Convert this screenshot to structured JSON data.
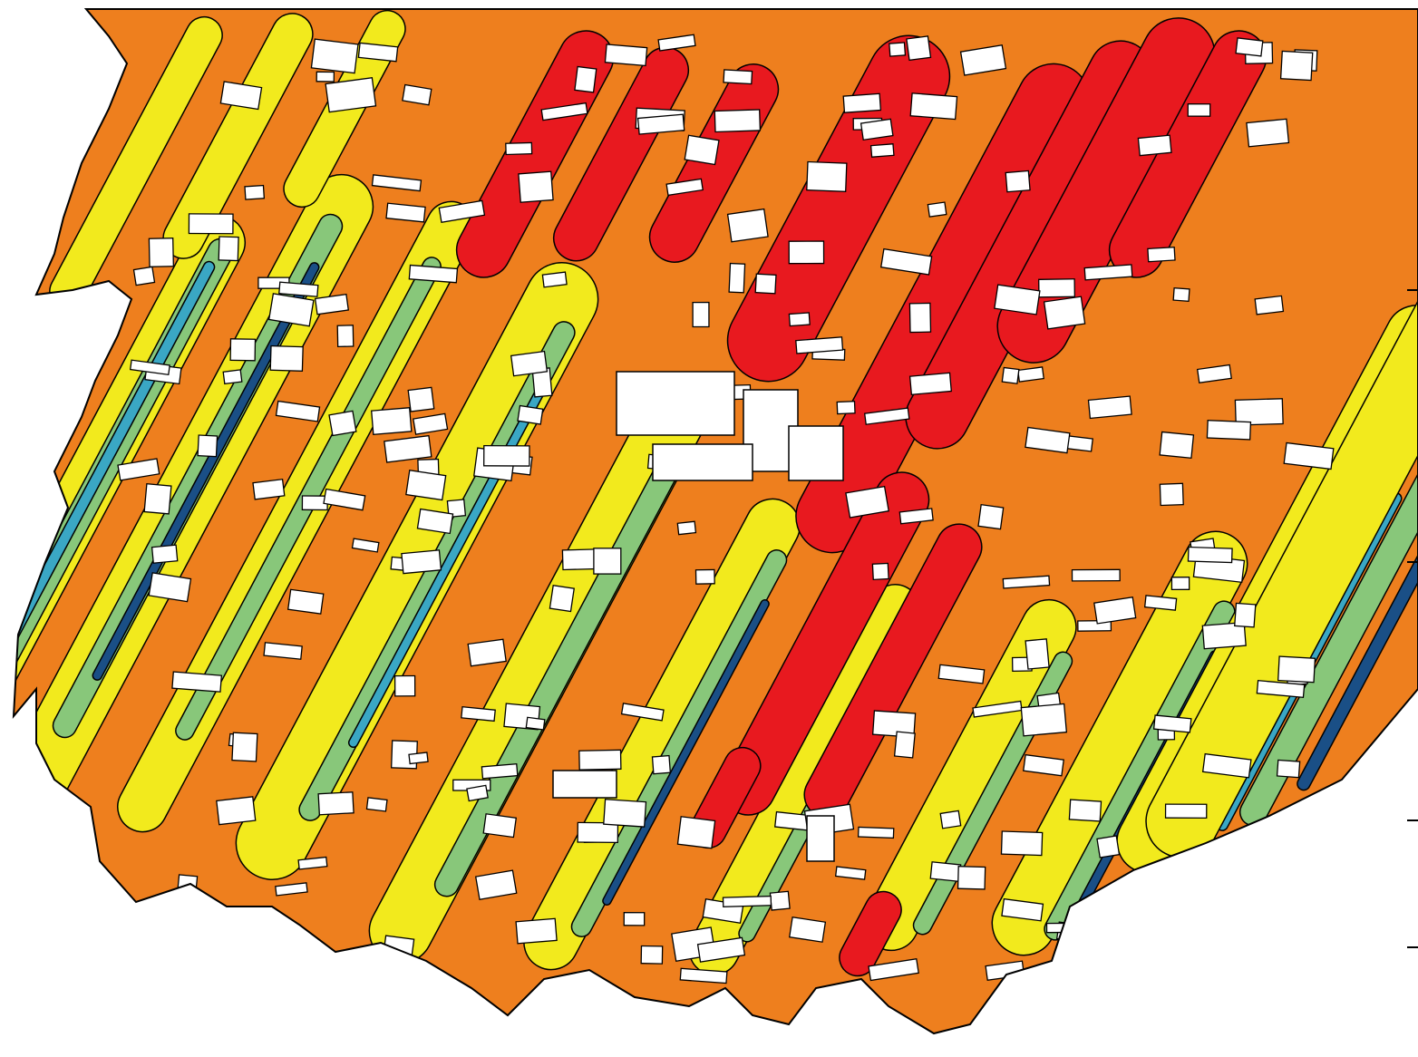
{
  "figure": {
    "kind": "contour-map",
    "text": []
  },
  "palette": {
    "outside": "#ffffff",
    "deep_blue": "#1a4f86",
    "light_blue": "#3aa7c4",
    "green": "#88c77a",
    "yellow": "#f2ea1d",
    "orange": "#ee7f1e",
    "red": "#e8191f",
    "buildings": "#ffffff",
    "contour_lines": "#000000"
  },
  "legend_shown": false,
  "axes_labels_shown": false,
  "right_edge_tick_marks": 4
}
